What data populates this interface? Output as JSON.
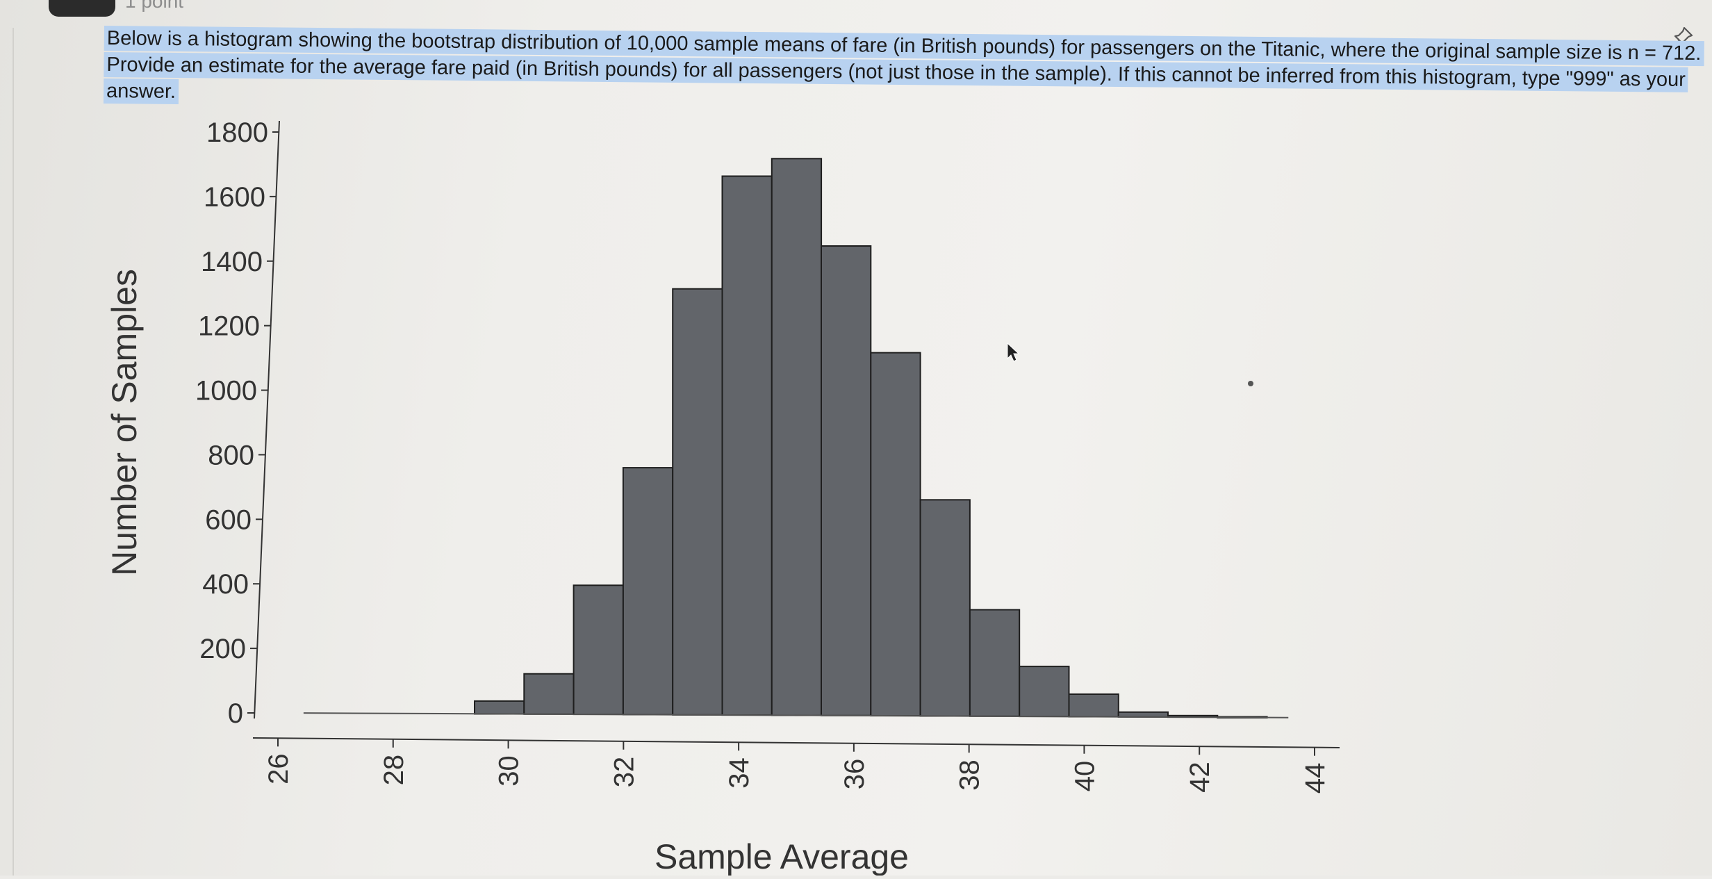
{
  "header": {
    "points_label": "1 point",
    "question_text": "Below is a histogram showing the bootstrap distribution of 10,000 sample means of fare (in British pounds) for passengers on the Titanic, where the original sample size is n = 712. Provide an estimate for the average fare paid (in British pounds) for all passengers (not just those in the sample). If this cannot be inferred from this histogram, type \"999\" as your answer."
  },
  "icons": {
    "pin": "pin-icon",
    "cursor": "cursor-arrow-icon"
  },
  "colors": {
    "bar_fill": "#62656a",
    "bar_stroke": "#1e1e1e",
    "highlight": "#b8d2f0"
  },
  "chart_data": {
    "type": "bar",
    "title": "",
    "xlabel": "Sample Average",
    "ylabel": "Number of Samples",
    "xlim": [
      26,
      44
    ],
    "ylim": [
      0,
      1800
    ],
    "x_ticks": [
      "26",
      "28",
      "30",
      "32",
      "34",
      "36",
      "38",
      "40",
      "42",
      "44"
    ],
    "y_ticks": [
      "0",
      "200",
      "400",
      "600",
      "800",
      "1000",
      "1200",
      "1400",
      "1600",
      "1800"
    ],
    "bin_width": 0.86,
    "bins": [
      {
        "start": 29.27,
        "count": 40
      },
      {
        "start": 30.13,
        "count": 125
      },
      {
        "start": 30.99,
        "count": 400
      },
      {
        "start": 31.85,
        "count": 765
      },
      {
        "start": 32.71,
        "count": 1320
      },
      {
        "start": 33.57,
        "count": 1670
      },
      {
        "start": 34.43,
        "count": 1725
      },
      {
        "start": 35.29,
        "count": 1455
      },
      {
        "start": 36.15,
        "count": 1125
      },
      {
        "start": 37.01,
        "count": 670
      },
      {
        "start": 37.87,
        "count": 330
      },
      {
        "start": 38.73,
        "count": 155
      },
      {
        "start": 39.59,
        "count": 70
      },
      {
        "start": 40.45,
        "count": 15
      },
      {
        "start": 41.31,
        "count": 5
      },
      {
        "start": 42.17,
        "count": 2
      }
    ],
    "grid": false,
    "legend": "none"
  }
}
